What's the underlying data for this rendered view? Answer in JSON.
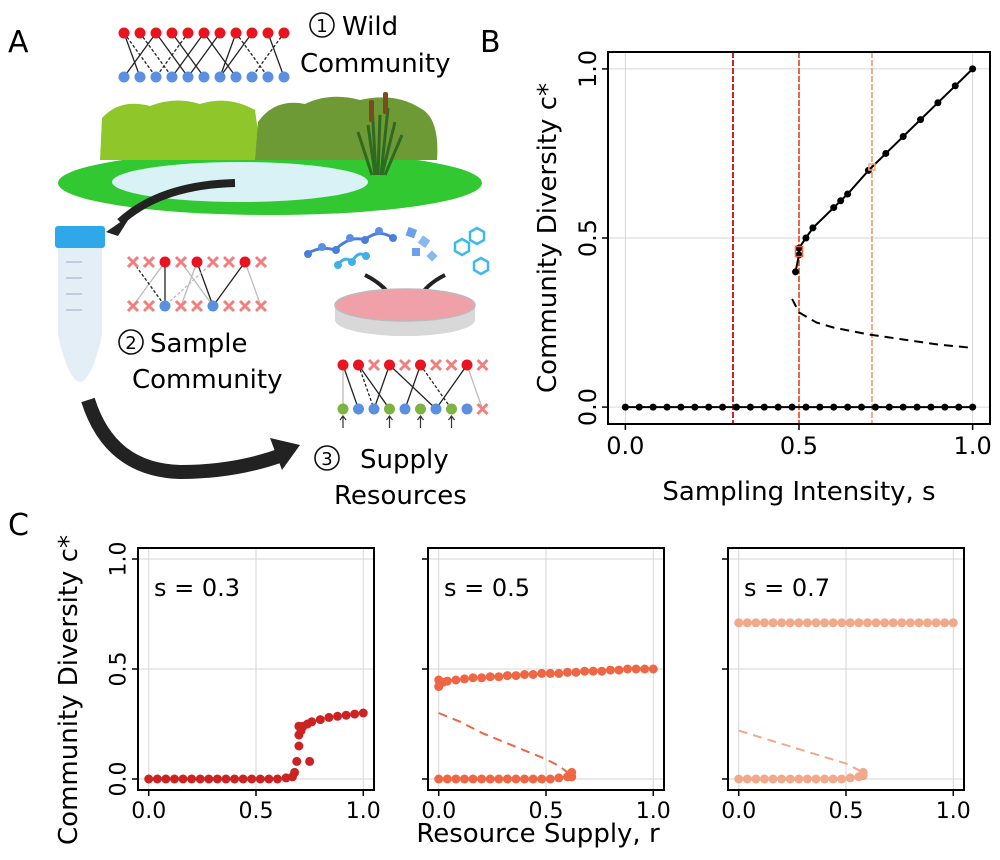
{
  "panels": {
    "a": "A",
    "b": "B",
    "c": "C"
  },
  "schematic": {
    "step1_num": "1",
    "step1_line1": "Wild",
    "step1_line2": "Community",
    "step2_num": "2",
    "step2_line1": "Sample",
    "step2_line2": "Community",
    "step3_num": "3",
    "step3_line1": "Supply",
    "step3_line2": "Resources"
  },
  "colors": {
    "s03": "#cc2222",
    "s05": "#ee6644",
    "s07": "#f2a88a",
    "red_node": "#e8141e",
    "blue_node": "#5b8fe0",
    "green_node": "#7cb342",
    "cross": "#f08080"
  },
  "chart_data": [
    {
      "id": "B",
      "type": "line",
      "title": "",
      "xlabel": "Sampling Intensity, s",
      "ylabel": "Community Diversity c*",
      "xlim": [
        -0.05,
        1.05
      ],
      "ylim": [
        -0.05,
        1.05
      ],
      "xticks": [
        0.0,
        0.5,
        1.0
      ],
      "xtick_labels": [
        "0.0",
        "0.5",
        "1.0"
      ],
      "yticks": [
        0.0,
        0.5,
        1.0
      ],
      "ytick_labels": [
        "0.0",
        "0.5",
        "1.0"
      ],
      "grid": true,
      "vlines": [
        {
          "x": 0.31,
          "color": "#cc2222"
        },
        {
          "x": 0.5,
          "color": "#ee6644"
        },
        {
          "x": 0.71,
          "color": "#f2a88a"
        }
      ],
      "series": [
        {
          "name": "stable zero branch",
          "style": "dots",
          "x": [
            0.0,
            0.04,
            0.08,
            0.12,
            0.16,
            0.2,
            0.24,
            0.28,
            0.32,
            0.36,
            0.4,
            0.44,
            0.48,
            0.52,
            0.56,
            0.6,
            0.64,
            0.68,
            0.72,
            0.76,
            0.8,
            0.84,
            0.88,
            0.92,
            0.96,
            1.0
          ],
          "y": [
            0,
            0,
            0,
            0,
            0,
            0,
            0,
            0,
            0,
            0,
            0,
            0,
            0,
            0,
            0,
            0,
            0,
            0,
            0,
            0,
            0,
            0,
            0,
            0,
            0,
            0
          ]
        },
        {
          "name": "stable upper branch",
          "style": "line+dots",
          "x": [
            0.49,
            0.5,
            0.5,
            0.52,
            0.54,
            0.6,
            0.62,
            0.64,
            0.7,
            0.75,
            0.8,
            0.85,
            0.9,
            0.95,
            1.0
          ],
          "y": [
            0.4,
            0.45,
            0.47,
            0.5,
            0.53,
            0.59,
            0.61,
            0.63,
            0.7,
            0.75,
            0.8,
            0.85,
            0.9,
            0.95,
            1.0
          ]
        },
        {
          "name": "unstable branch",
          "style": "dashed",
          "x": [
            0.48,
            0.5,
            0.55,
            0.6,
            0.7,
            0.8,
            0.9,
            1.0
          ],
          "y": [
            0.32,
            0.28,
            0.25,
            0.235,
            0.215,
            0.2,
            0.185,
            0.175
          ]
        }
      ]
    },
    {
      "id": "C1",
      "type": "scatter",
      "annotation": "s = 0.3",
      "xlabel": "",
      "ylabel": "Community Diversity c*",
      "xlim": [
        -0.05,
        1.05
      ],
      "ylim": [
        -0.05,
        1.05
      ],
      "xticks": [
        0.0,
        0.5,
        1.0
      ],
      "xtick_labels": [
        "0.0",
        "0.5",
        "1.0"
      ],
      "yticks": [
        0.0,
        0.5,
        1.0
      ],
      "ytick_labels": [
        "0.0",
        "0.5",
        "1.0"
      ],
      "grid": true,
      "series": [
        {
          "name": "s=0.3",
          "color": "#cc2222",
          "style": "dots",
          "x": [
            0,
            0.04,
            0.08,
            0.12,
            0.16,
            0.2,
            0.24,
            0.28,
            0.32,
            0.36,
            0.4,
            0.44,
            0.48,
            0.52,
            0.56,
            0.6,
            0.64,
            0.67,
            0.68,
            0.69,
            0.7,
            0.7,
            0.7,
            0.71,
            0.72,
            0.74,
            0.76,
            0.8,
            0.84,
            0.88,
            0.92,
            0.96,
            1.0,
            0.75
          ],
          "y": [
            0,
            0,
            0,
            0,
            0,
            0,
            0,
            0,
            0,
            0,
            0,
            0,
            0,
            0,
            0,
            0,
            0.005,
            0.01,
            0.03,
            0.08,
            0.15,
            0.2,
            0.24,
            0.22,
            0.24,
            0.25,
            0.26,
            0.27,
            0.28,
            0.285,
            0.29,
            0.295,
            0.3,
            0.08
          ]
        }
      ]
    },
    {
      "id": "C2",
      "type": "scatter",
      "annotation": "s = 0.5",
      "xlabel": "Resource Supply, r",
      "ylabel": "",
      "xlim": [
        -0.05,
        1.05
      ],
      "ylim": [
        -0.05,
        1.05
      ],
      "xticks": [
        0.0,
        0.5,
        1.0
      ],
      "xtick_labels": [
        "0.0",
        "0.5",
        "1.0"
      ],
      "yticks": [
        0.0,
        0.5,
        1.0
      ],
      "ytick_labels": [
        "",
        "",
        ""
      ],
      "grid": true,
      "series": [
        {
          "name": "upper",
          "color": "#ee6644",
          "style": "dots",
          "x": [
            0,
            0.0,
            0.02,
            0.04,
            0.08,
            0.12,
            0.16,
            0.2,
            0.24,
            0.28,
            0.32,
            0.36,
            0.4,
            0.44,
            0.48,
            0.52,
            0.56,
            0.6,
            0.64,
            0.68,
            0.72,
            0.76,
            0.8,
            0.84,
            0.88,
            0.92,
            0.96,
            1.0
          ],
          "y": [
            0.42,
            0.45,
            0.44,
            0.445,
            0.45,
            0.455,
            0.46,
            0.46,
            0.465,
            0.465,
            0.47,
            0.47,
            0.475,
            0.475,
            0.48,
            0.48,
            0.48,
            0.485,
            0.485,
            0.49,
            0.49,
            0.49,
            0.495,
            0.495,
            0.5,
            0.5,
            0.5,
            0.5
          ]
        },
        {
          "name": "lower",
          "color": "#ee6644",
          "style": "dots",
          "x": [
            0,
            0.04,
            0.08,
            0.12,
            0.16,
            0.2,
            0.24,
            0.28,
            0.32,
            0.36,
            0.4,
            0.44,
            0.48,
            0.52,
            0.56,
            0.6,
            0.62,
            0.62
          ],
          "y": [
            0,
            0,
            0,
            0,
            0,
            0,
            0,
            0,
            0,
            0,
            0,
            0,
            0,
            0,
            0.005,
            0.01,
            0.01,
            0.03
          ]
        },
        {
          "name": "unstable",
          "color": "#ee6644",
          "style": "dashed",
          "x": [
            0,
            0.1,
            0.2,
            0.3,
            0.4,
            0.5,
            0.56,
            0.6
          ],
          "y": [
            0.3,
            0.26,
            0.21,
            0.17,
            0.13,
            0.09,
            0.06,
            0.03
          ]
        }
      ]
    },
    {
      "id": "C3",
      "type": "scatter",
      "annotation": "s = 0.7",
      "xlabel": "",
      "ylabel": "",
      "xlim": [
        -0.05,
        1.05
      ],
      "ylim": [
        -0.05,
        1.05
      ],
      "xticks": [
        0.0,
        0.5,
        1.0
      ],
      "xtick_labels": [
        "0.0",
        "0.5",
        "1.0"
      ],
      "yticks": [
        0.0,
        0.5,
        1.0
      ],
      "ytick_labels": [
        "",
        "",
        ""
      ],
      "grid": true,
      "series": [
        {
          "name": "upper",
          "color": "#f2a88a",
          "style": "dots",
          "x": [
            0,
            0.04,
            0.08,
            0.12,
            0.16,
            0.2,
            0.24,
            0.28,
            0.32,
            0.36,
            0.4,
            0.44,
            0.48,
            0.52,
            0.56,
            0.6,
            0.64,
            0.68,
            0.72,
            0.76,
            0.8,
            0.84,
            0.88,
            0.92,
            0.96,
            1.0
          ],
          "y": [
            0.71,
            0.71,
            0.71,
            0.71,
            0.71,
            0.71,
            0.71,
            0.71,
            0.71,
            0.71,
            0.71,
            0.71,
            0.71,
            0.71,
            0.71,
            0.71,
            0.71,
            0.71,
            0.71,
            0.71,
            0.71,
            0.71,
            0.71,
            0.71,
            0.71,
            0.71
          ]
        },
        {
          "name": "lower",
          "color": "#f2a88a",
          "style": "dots",
          "x": [
            0,
            0.04,
            0.08,
            0.12,
            0.16,
            0.2,
            0.24,
            0.28,
            0.32,
            0.36,
            0.4,
            0.44,
            0.48,
            0.52,
            0.56,
            0.58,
            0.58
          ],
          "y": [
            0,
            0,
            0,
            0,
            0,
            0,
            0,
            0,
            0,
            0,
            0,
            0,
            0,
            0.005,
            0.01,
            0.015,
            0.03
          ]
        },
        {
          "name": "unstable",
          "color": "#f2a88a",
          "style": "dashed",
          "x": [
            0,
            0.1,
            0.2,
            0.3,
            0.4,
            0.5,
            0.56,
            0.58
          ],
          "y": [
            0.22,
            0.19,
            0.16,
            0.13,
            0.1,
            0.07,
            0.04,
            0.02
          ]
        }
      ]
    }
  ]
}
